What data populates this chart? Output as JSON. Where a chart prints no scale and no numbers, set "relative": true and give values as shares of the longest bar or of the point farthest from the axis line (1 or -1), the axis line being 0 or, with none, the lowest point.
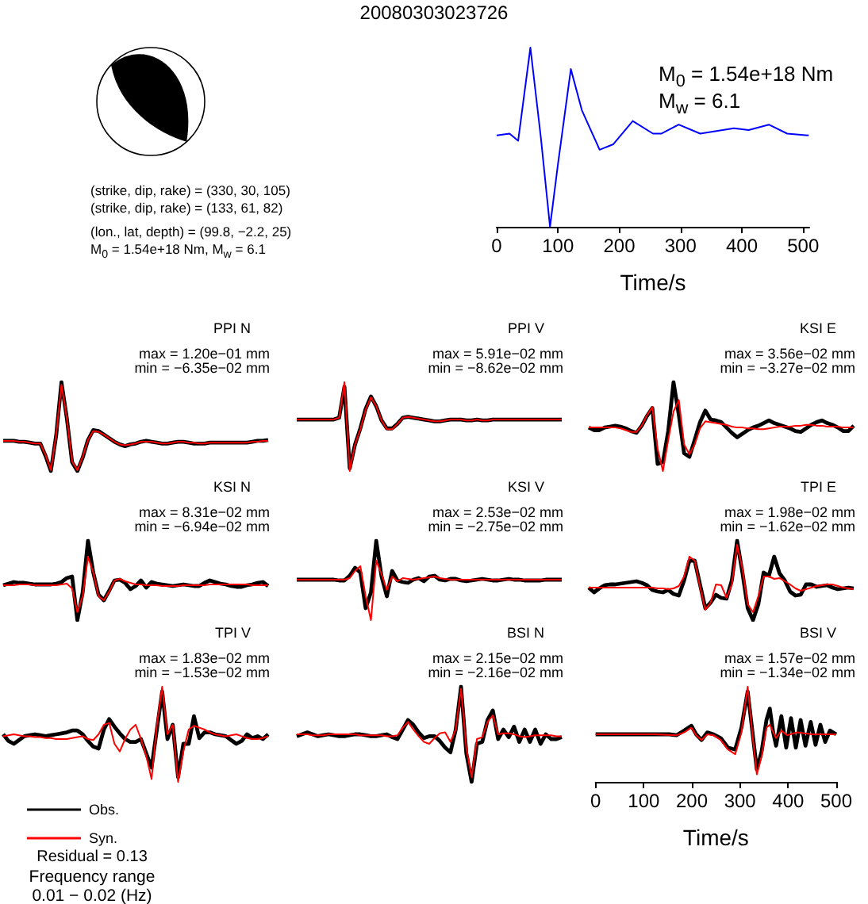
{
  "chart_data": [
    {
      "type": "other",
      "title": "20080303023726",
      "annotations": [
        "(strike, dip, rake) = (330, 30, 105)",
        "(strike, dip, rake) = (133, 61, 82)",
        "(lon., lat, depth) = (99.8, −2.2, 25)",
        "M$_{0}$ = 1.54e+18 Nm, M$_{w}$ = 6.1"
      ]
    },
    {
      "type": "line",
      "relative": true,
      "xlim": [
        0,
        510
      ],
      "xticks": [
        0,
        100,
        200,
        300,
        400,
        500
      ],
      "xlabel": "Time/s",
      "annotations": [
        "M$_{0}$ = 1.54e+18 Nm",
        "M$_{w}$ = 6.1"
      ],
      "series": [
        {
          "color": "#0000ff",
          "x": [
            0,
            21,
            35,
            55,
            72,
            87,
            100,
            121,
            139,
            168,
            190,
            222,
            255,
            269,
            297,
            332,
            387,
            411,
            444,
            474,
            509
          ],
          "values": [
            0.51,
            0.52,
            0.48,
            1,
            0.5,
            0,
            0.35,
            0.88,
            0.65,
            0.43,
            0.46,
            0.59,
            0.52,
            0.52,
            0.57,
            0.52,
            0.55,
            0.54,
            0.57,
            0.52,
            0.51
          ]
        }
      ]
    },
    {
      "type": "line",
      "relative": true,
      "title": "PPI N",
      "annotations": [
        "max = 1.20e−01 mm",
        "min = −6.35e−02 mm"
      ],
      "tick_labels": false,
      "categories": [
        null,
        null,
        null,
        null,
        null,
        null,
        null,
        null,
        null,
        null,
        null,
        null,
        null,
        null,
        null,
        null,
        null,
        null,
        null,
        null,
        null,
        null,
        null,
        null,
        null,
        null,
        null,
        null,
        null,
        null,
        null,
        null,
        null,
        null,
        null,
        null,
        null,
        null,
        null,
        null,
        null,
        null,
        null,
        null,
        null,
        null,
        null,
        null,
        null,
        null,
        null
      ],
      "series": [
        {
          "color": "#000000",
          "values": [
            0.34,
            0.34,
            0.34,
            0.33,
            0.33,
            0.32,
            0.31,
            0.31,
            0.17,
            0,
            0.4,
            1,
            0.6,
            0.1,
            0,
            0.15,
            0.35,
            0.46,
            0.45,
            0.41,
            0.37,
            0.33,
            0.3,
            0.28,
            0.3,
            0.31,
            0.33,
            0.34,
            0.33,
            0.32,
            0.31,
            0.31,
            0.32,
            0.33,
            0.33,
            0.32,
            0.31,
            0.31,
            0.31,
            0.32,
            0.32,
            0.32,
            0.32,
            0.32,
            0.32,
            0.32,
            0.32,
            0.33,
            0.34,
            0.34,
            0.35
          ]
        },
        {
          "color": "#ff0000",
          "values": [
            0.34,
            0.34,
            0.34,
            0.33,
            0.33,
            0.32,
            0.31,
            0.31,
            0.18,
            0.01,
            0.41,
            0.97,
            0.6,
            0.11,
            0.01,
            0.16,
            0.35,
            0.45,
            0.44,
            0.41,
            0.37,
            0.33,
            0.3,
            0.29,
            0.3,
            0.31,
            0.33,
            0.33,
            0.33,
            0.32,
            0.31,
            0.31,
            0.32,
            0.33,
            0.33,
            0.32,
            0.32,
            0.31,
            0.31,
            0.32,
            0.32,
            0.32,
            0.32,
            0.32,
            0.32,
            0.32,
            0.32,
            0.33,
            0.33,
            0.34,
            0.34
          ]
        }
      ]
    },
    {
      "type": "line",
      "relative": true,
      "title": "PPI V",
      "annotations": [
        "max = 5.91e−02 mm",
        "min = −8.62e−02 mm"
      ],
      "tick_labels": false,
      "categories": [
        null,
        null,
        null,
        null,
        null,
        null,
        null,
        null,
        null,
        null,
        null,
        null,
        null,
        null,
        null,
        null,
        null,
        null,
        null,
        null,
        null,
        null,
        null,
        null,
        null,
        null,
        null,
        null,
        null,
        null,
        null,
        null,
        null,
        null,
        null,
        null,
        null,
        null,
        null,
        null,
        null,
        null,
        null,
        null,
        null,
        null,
        null,
        null,
        null,
        null,
        null
      ],
      "series": [
        {
          "color": "#000000",
          "values": [
            0.58,
            0.58,
            0.58,
            0.58,
            0.58,
            0.58,
            0.58,
            0.58,
            0.6,
            0.95,
            0.03,
            0.3,
            0.48,
            0.7,
            0.84,
            0.73,
            0.57,
            0.48,
            0.48,
            0.53,
            0.6,
            0.61,
            0.6,
            0.59,
            0.58,
            0.57,
            0.56,
            0.56,
            0.57,
            0.58,
            0.58,
            0.58,
            0.57,
            0.57,
            0.58,
            0.57,
            0.57,
            0.58,
            0.58,
            0.58,
            0.58,
            0.58,
            0.58,
            0.58,
            0.58,
            0.58,
            0.58,
            0.58,
            0.58,
            0.58,
            0.58
          ]
        },
        {
          "color": "#ff0000",
          "values": [
            0.58,
            0.58,
            0.58,
            0.58,
            0.58,
            0.58,
            0.58,
            0.58,
            0.6,
            1,
            0,
            0.3,
            0.47,
            0.69,
            0.83,
            0.73,
            0.57,
            0.47,
            0.47,
            0.53,
            0.6,
            0.61,
            0.6,
            0.59,
            0.58,
            0.57,
            0.56,
            0.56,
            0.57,
            0.58,
            0.58,
            0.58,
            0.57,
            0.57,
            0.58,
            0.57,
            0.57,
            0.58,
            0.58,
            0.58,
            0.58,
            0.58,
            0.58,
            0.58,
            0.58,
            0.58,
            0.58,
            0.58,
            0.58,
            0.58,
            0.58
          ]
        }
      ]
    },
    {
      "type": "line",
      "relative": true,
      "title": "KSI E",
      "annotations": [
        "max = 3.56e−02 mm",
        "min = −3.27e−02 mm"
      ],
      "tick_labels": false,
      "categories": [
        null,
        null,
        null,
        null,
        null,
        null,
        null,
        null,
        null,
        null,
        null,
        null,
        null,
        null,
        null,
        null,
        null,
        null,
        null,
        null,
        null,
        null,
        null,
        null,
        null,
        null,
        null,
        null,
        null,
        null,
        null,
        null,
        null,
        null,
        null,
        null,
        null,
        null,
        null,
        null,
        null,
        null,
        null,
        null,
        null,
        null,
        null,
        null,
        null,
        null,
        null
      ],
      "series": [
        {
          "color": "#000000",
          "values": [
            0.49,
            0.46,
            0.46,
            0.49,
            0.5,
            0.51,
            0.5,
            0.48,
            0.45,
            0.43,
            0.51,
            0.62,
            0.71,
            0.08,
            0.1,
            0.45,
            1,
            0.63,
            0.2,
            0.16,
            0.35,
            0.55,
            0.68,
            0.58,
            0.57,
            0.55,
            0.49,
            0.43,
            0.38,
            0.42,
            0.46,
            0.49,
            0.51,
            0.54,
            0.57,
            0.54,
            0.52,
            0.5,
            0.48,
            0.45,
            0.44,
            0.48,
            0.52,
            0.55,
            0.57,
            0.54,
            0.52,
            0.49,
            0.45,
            0.45,
            0.51
          ]
        },
        {
          "color": "#ff0000",
          "values": [
            0.49,
            0.49,
            0.49,
            0.49,
            0.49,
            0.49,
            0.48,
            0.46,
            0.44,
            0.44,
            0.51,
            0.63,
            0.72,
            0.25,
            0,
            0.35,
            0.67,
            0.8,
            0.3,
            0.19,
            0.3,
            0.48,
            0.56,
            0.55,
            0.54,
            0.53,
            0.52,
            0.5,
            0.49,
            0.49,
            0.48,
            0.48,
            0.47,
            0.47,
            0.48,
            0.49,
            0.5,
            0.5,
            0.5,
            0.51,
            0.51,
            0.52,
            0.52,
            0.51,
            0.51,
            0.5,
            0.5,
            0.5,
            0.49,
            0.49,
            0.49
          ]
        }
      ]
    },
    {
      "type": "line",
      "relative": true,
      "title": "KSI N",
      "annotations": [
        "max = 8.31e−02 mm",
        "min = −6.94e−02 mm"
      ],
      "tick_labels": false,
      "categories": [
        null,
        null,
        null,
        null,
        null,
        null,
        null,
        null,
        null,
        null,
        null,
        null,
        null,
        null,
        null,
        null,
        null,
        null,
        null,
        null,
        null,
        null,
        null,
        null,
        null,
        null,
        null,
        null,
        null,
        null,
        null,
        null,
        null,
        null,
        null,
        null,
        null,
        null,
        null,
        null,
        null,
        null,
        null,
        null,
        null,
        null,
        null,
        null,
        null,
        null,
        null
      ],
      "series": [
        {
          "color": "#000000",
          "values": [
            0.44,
            0.46,
            0.48,
            0.47,
            0.47,
            0.46,
            0.45,
            0.45,
            0.45,
            0.45,
            0.46,
            0.48,
            0.53,
            0.55,
            0,
            0.35,
            1,
            0.6,
            0.32,
            0.25,
            0.37,
            0.5,
            0.51,
            0.47,
            0.39,
            0.43,
            0.5,
            0.41,
            0.48,
            0.46,
            0.45,
            0.44,
            0.43,
            0.44,
            0.45,
            0.44,
            0.43,
            0.43,
            0.47,
            0.5,
            0.48,
            0.46,
            0.45,
            0.43,
            0.42,
            0.42,
            0.44,
            0.45,
            0.47,
            0.48,
            0.43
          ]
        },
        {
          "color": "#ff0000",
          "values": [
            0.44,
            0.44,
            0.44,
            0.45,
            0.45,
            0.45,
            0.44,
            0.44,
            0.44,
            0.44,
            0.44,
            0.45,
            0.46,
            0.4,
            0.1,
            0.3,
            0.8,
            0.6,
            0.3,
            0.25,
            0.36,
            0.5,
            0.52,
            0.49,
            0.47,
            0.45,
            0.45,
            0.44,
            0.44,
            0.44,
            0.43,
            0.43,
            0.43,
            0.43,
            0.44,
            0.44,
            0.44,
            0.44,
            0.44,
            0.45,
            0.45,
            0.45,
            0.45,
            0.45,
            0.45,
            0.45,
            0.45,
            0.44,
            0.44,
            0.44,
            0.44
          ]
        }
      ]
    },
    {
      "type": "line",
      "relative": true,
      "title": "KSI V",
      "annotations": [
        "max = 2.53e−02 mm",
        "min = −2.75e−02 mm"
      ],
      "tick_labels": false,
      "categories": [
        null,
        null,
        null,
        null,
        null,
        null,
        null,
        null,
        null,
        null,
        null,
        null,
        null,
        null,
        null,
        null,
        null,
        null,
        null,
        null,
        null,
        null,
        null,
        null,
        null,
        null,
        null,
        null,
        null,
        null,
        null,
        null,
        null,
        null,
        null,
        null,
        null,
        null,
        null,
        null,
        null,
        null,
        null,
        null,
        null,
        null,
        null,
        null,
        null,
        null,
        null
      ],
      "series": [
        {
          "color": "#000000",
          "values": [
            0.51,
            0.51,
            0.51,
            0.51,
            0.51,
            0.51,
            0.51,
            0.51,
            0.5,
            0.5,
            0.56,
            0.66,
            0.6,
            0.15,
            0.35,
            1,
            0.55,
            0.3,
            0.62,
            0.5,
            0.48,
            0.47,
            0.51,
            0.53,
            0.49,
            0.55,
            0.56,
            0.51,
            0.5,
            0.52,
            0.52,
            0.5,
            0.49,
            0.5,
            0.51,
            0.52,
            0.51,
            0.5,
            0.5,
            0.51,
            0.52,
            0.51,
            0.51,
            0.5,
            0.5,
            0.5,
            0.5,
            0.51,
            0.51,
            0.51,
            0.51
          ]
        },
        {
          "color": "#ff0000",
          "values": [
            0.51,
            0.51,
            0.51,
            0.51,
            0.51,
            0.51,
            0.51,
            0.51,
            0.51,
            0.51,
            0.53,
            0.62,
            0.68,
            0.3,
            0,
            0.75,
            0.58,
            0.38,
            0.55,
            0.49,
            0.53,
            0.52,
            0.51,
            0.52,
            0.53,
            0.54,
            0.55,
            0.53,
            0.52,
            0.51,
            0.51,
            0.51,
            0.51,
            0.51,
            0.51,
            0.51,
            0.51,
            0.51,
            0.51,
            0.51,
            0.51,
            0.51,
            0.51,
            0.51,
            0.51,
            0.51,
            0.51,
            0.51,
            0.51,
            0.51,
            0.51
          ]
        }
      ]
    },
    {
      "type": "line",
      "relative": true,
      "title": "TPI E",
      "annotations": [
        "max = 1.98e−02 mm",
        "min = −1.62e−02 mm"
      ],
      "tick_labels": false,
      "categories": [
        null,
        null,
        null,
        null,
        null,
        null,
        null,
        null,
        null,
        null,
        null,
        null,
        null,
        null,
        null,
        null,
        null,
        null,
        null,
        null,
        null,
        null,
        null,
        null,
        null,
        null,
        null,
        null,
        null,
        null,
        null,
        null,
        null,
        null,
        null,
        null,
        null,
        null,
        null,
        null,
        null,
        null,
        null,
        null,
        null,
        null,
        null,
        null,
        null,
        null,
        null
      ],
      "series": [
        {
          "color": "#000000",
          "values": [
            0.41,
            0.35,
            0.4,
            0.44,
            0.45,
            0.45,
            0.46,
            0.47,
            0.48,
            0.49,
            0.47,
            0.44,
            0.38,
            0.36,
            0.35,
            0.38,
            0.33,
            0.31,
            0.5,
            0.75,
            0.75,
            0.45,
            0.15,
            0.22,
            0.32,
            0.28,
            0.27,
            0.5,
            1,
            0.6,
            0.15,
            0,
            0.2,
            0.6,
            0.56,
            0.8,
            0.59,
            0.5,
            0.36,
            0.31,
            0.32,
            0.45,
            0.45,
            0.42,
            0.43,
            0.44,
            0.41,
            0.39,
            0.4,
            0.41,
            0.4
          ]
        },
        {
          "color": "#ff0000",
          "values": [
            0.41,
            0.41,
            0.41,
            0.41,
            0.41,
            0.41,
            0.41,
            0.41,
            0.41,
            0.41,
            0.41,
            0.41,
            0.41,
            0.4,
            0.4,
            0.39,
            0.4,
            0.43,
            0.55,
            0.8,
            0.75,
            0.42,
            0.13,
            0.22,
            0.45,
            0.44,
            0.28,
            0.45,
            0.95,
            0.65,
            0.2,
            0.1,
            0.3,
            0.55,
            0.55,
            0.52,
            0.53,
            0.49,
            0.45,
            0.4,
            0.37,
            0.39,
            0.41,
            0.43,
            0.44,
            0.45,
            0.45,
            0.43,
            0.41,
            0.4,
            0.39
          ]
        }
      ]
    },
    {
      "type": "line",
      "relative": true,
      "title": "TPI V",
      "annotations": [
        "max = 1.83e−02 mm",
        "min = −1.53e−02 mm",
        "Residual = 0.13",
        "Frequency range",
        "0.01 − 0.02 (Hz)"
      ],
      "tick_labels": false,
      "legend": "bottom left",
      "categories": [
        null,
        null,
        null,
        null,
        null,
        null,
        null,
        null,
        null,
        null,
        null,
        null,
        null,
        null,
        null,
        null,
        null,
        null,
        null,
        null,
        null,
        null,
        null,
        null,
        null,
        null,
        null,
        null,
        null,
        null,
        null,
        null,
        null,
        null,
        null,
        null,
        null,
        null,
        null,
        null,
        null,
        null,
        null,
        null,
        null,
        null,
        null,
        null,
        null,
        null,
        null
      ],
      "series": [
        {
          "name": "Obs.",
          "color": "#000000",
          "values": [
            0.5,
            0.43,
            0.4,
            0.44,
            0.48,
            0.49,
            0.5,
            0.49,
            0.48,
            0.49,
            0.5,
            0.51,
            0.52,
            0.54,
            0.54,
            0.5,
            0.43,
            0.37,
            0.35,
            0.55,
            0.66,
            0.58,
            0.51,
            0.45,
            0.42,
            0.42,
            0.45,
            0.3,
            0.15,
            0.55,
            0.95,
            0.45,
            0.6,
            0.05,
            0.4,
            0.4,
            0.69,
            0.46,
            0.52,
            0.52,
            0.5,
            0.49,
            0.48,
            0.44,
            0.4,
            0.43,
            0.5,
            0.46,
            0.48,
            0.45,
            0.5
          ]
        },
        {
          "name": "Syn.",
          "color": "#ff0000",
          "values": [
            0.48,
            0.49,
            0.5,
            0.49,
            0.48,
            0.48,
            0.47,
            0.47,
            0.46,
            0.46,
            0.45,
            0.45,
            0.45,
            0.46,
            0.47,
            0.48,
            0.45,
            0.44,
            0.5,
            0.6,
            0.62,
            0.4,
            0.32,
            0.45,
            0.55,
            0.6,
            0.45,
            0.27,
            0.03,
            0.6,
            1,
            0.5,
            0.6,
            0,
            0.32,
            0.55,
            0.59,
            0.57,
            0.55,
            0.52,
            0.5,
            0.49,
            0.48,
            0.49,
            0.5,
            0.48,
            0.46,
            0.45,
            0.45,
            0.46,
            0.48
          ]
        }
      ]
    },
    {
      "type": "line",
      "relative": true,
      "title": "BSI N",
      "annotations": [
        "max = 2.15e−02 mm",
        "min = −2.16e−02 mm"
      ],
      "tick_labels": false,
      "categories": [
        null,
        null,
        null,
        null,
        null,
        null,
        null,
        null,
        null,
        null,
        null,
        null,
        null,
        null,
        null,
        null,
        null,
        null,
        null,
        null,
        null,
        null,
        null,
        null,
        null,
        null,
        null,
        null,
        null,
        null,
        null,
        null,
        null,
        null,
        null,
        null,
        null,
        null,
        null,
        null,
        null,
        null,
        null,
        null,
        null,
        null,
        null,
        null,
        null,
        null,
        null
      ],
      "series": [
        {
          "color": "#000000",
          "values": [
            0.48,
            0.5,
            0.52,
            0.5,
            0.48,
            0.49,
            0.5,
            0.49,
            0.48,
            0.48,
            0.49,
            0.5,
            0.5,
            0.49,
            0.48,
            0.48,
            0.49,
            0.5,
            0.47,
            0.45,
            0.55,
            0.65,
            0.6,
            0.52,
            0.46,
            0.48,
            0.48,
            0.43,
            0.36,
            0.31,
            0.55,
            1,
            0.3,
            0,
            0.4,
            0.42,
            0.65,
            0.75,
            0.45,
            0.55,
            0.47,
            0.58,
            0.42,
            0.55,
            0.42,
            0.55,
            0.4,
            0.5,
            0.45,
            0.45,
            0.47
          ]
        },
        {
          "color": "#ff0000",
          "values": [
            0.5,
            0.5,
            0.5,
            0.49,
            0.49,
            0.49,
            0.5,
            0.5,
            0.5,
            0.5,
            0.5,
            0.5,
            0.49,
            0.49,
            0.49,
            0.49,
            0.49,
            0.48,
            0.48,
            0.49,
            0.57,
            0.63,
            0.55,
            0.48,
            0.42,
            0.4,
            0.46,
            0.51,
            0.52,
            0.42,
            0.55,
            0.98,
            0.35,
            0.05,
            0.45,
            0.47,
            0.63,
            0.7,
            0.5,
            0.51,
            0.51,
            0.5,
            0.48,
            0.47,
            0.48,
            0.49,
            0.49,
            0.49,
            0.49,
            0.48,
            0.48
          ]
        }
      ]
    },
    {
      "type": "line",
      "relative": true,
      "title": "BSI V",
      "annotations": [
        "max = 1.57e−02 mm",
        "min = −1.34e−02 mm"
      ],
      "xlim": [
        0,
        500
      ],
      "xticks": [
        0,
        100,
        200,
        300,
        400,
        500
      ],
      "xlabel": "Time/s",
      "tick_labels": "x",
      "series": [
        {
          "color": "#000000",
          "x": [
            0,
            61,
            122,
            153,
            168,
            184,
            199,
            209,
            220,
            232,
            245,
            260,
            275,
            290,
            303,
            316,
            326,
            335,
            345,
            355,
            362,
            369,
            375,
            386,
            396,
            406,
            416,
            426,
            436,
            447,
            457,
            467,
            477,
            487,
            500
          ],
          "values": [
            0.5,
            0.5,
            0.5,
            0.5,
            0.49,
            0.54,
            0.59,
            0.5,
            0.44,
            0.52,
            0.5,
            0.46,
            0.36,
            0.34,
            0.57,
            0.95,
            0.52,
            0.13,
            0.32,
            0.65,
            0.77,
            0.52,
            0.38,
            0.69,
            0.36,
            0.67,
            0.36,
            0.65,
            0.38,
            0.63,
            0.39,
            0.6,
            0.42,
            0.54,
            0.5
          ]
        },
        {
          "color": "#ff0000",
          "x": [
            0,
            61,
            122,
            168,
            184,
            199,
            209,
            220,
            232,
            245,
            260,
            275,
            290,
            303,
            316,
            326,
            335,
            345,
            355,
            362,
            375,
            386,
            398,
            418,
            449,
            500
          ],
          "values": [
            0.5,
            0.5,
            0.5,
            0.49,
            0.52,
            0.57,
            0.49,
            0.44,
            0.5,
            0.49,
            0.44,
            0.34,
            0.29,
            0.52,
            1,
            0.49,
            0.08,
            0.27,
            0.57,
            0.6,
            0.46,
            0.54,
            0.49,
            0.52,
            0.5,
            0.5
          ]
        }
      ]
    }
  ]
}
